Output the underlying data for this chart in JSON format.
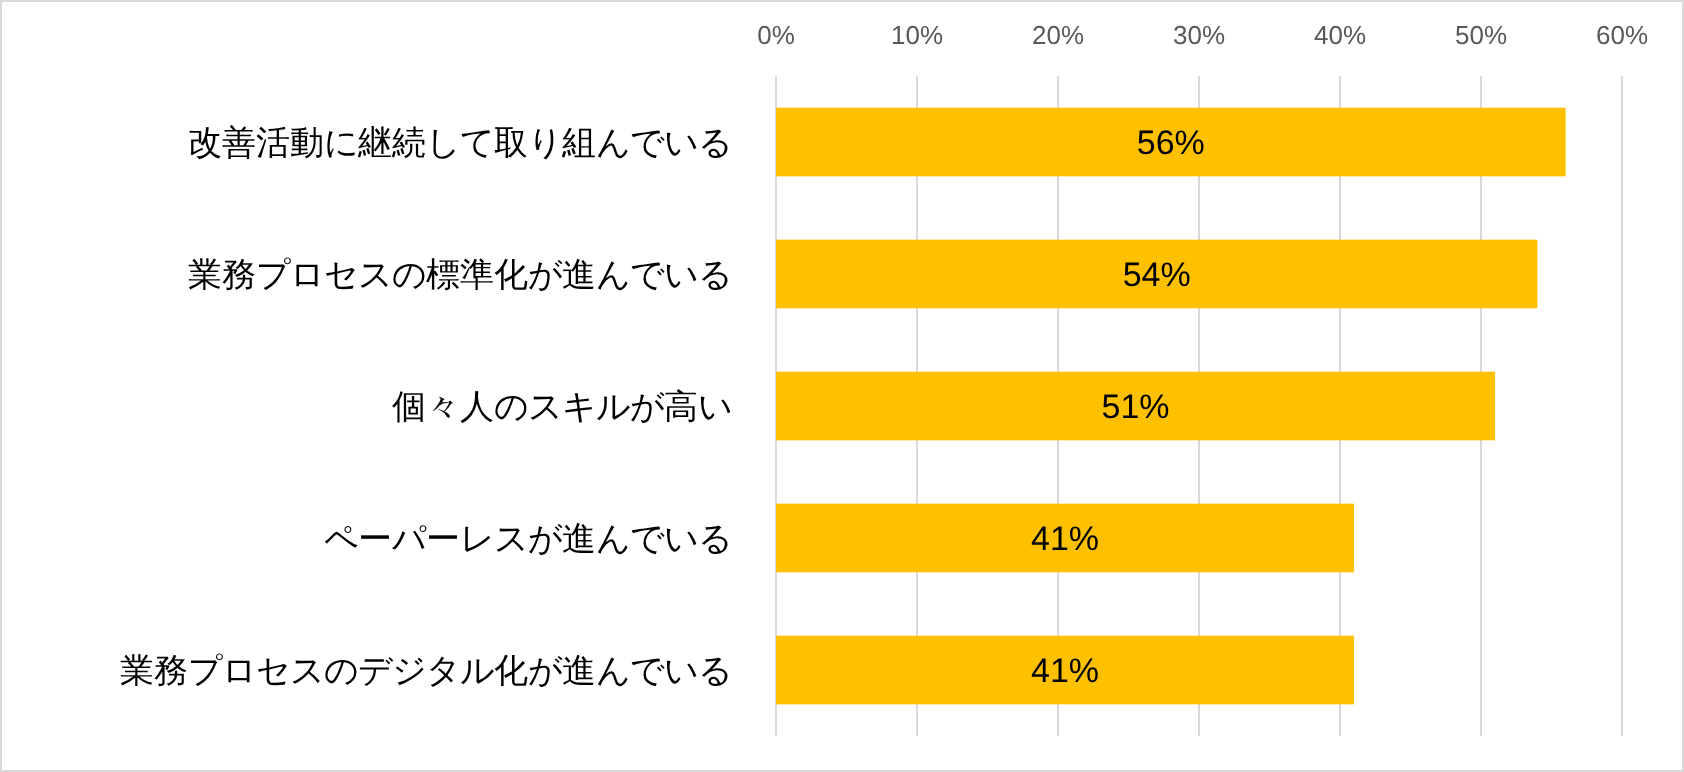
{
  "chart_data": {
    "type": "bar",
    "orientation": "horizontal",
    "categories": [
      "改善活動に継続して取り組んでいる",
      "業務プロセスの標準化が進んでいる",
      "個々人のスキルが高い",
      "ペーパーレスが進んでいる",
      "業務プロセスのデジタル化が進んでいる"
    ],
    "values": [
      56,
      54,
      51,
      41,
      41
    ],
    "value_labels": [
      "56%",
      "54%",
      "51%",
      "41%",
      "41%"
    ],
    "color": "#ffc000",
    "xlim": [
      0,
      60
    ],
    "xticks": [
      {
        "value": 0,
        "label": "0%"
      },
      {
        "value": 10,
        "label": "10%"
      },
      {
        "value": 20,
        "label": "20%"
      },
      {
        "value": 30,
        "label": "30%"
      },
      {
        "value": 40,
        "label": "40%"
      },
      {
        "value": 50,
        "label": "50%"
      },
      {
        "value": 60,
        "label": "60%"
      }
    ],
    "grid": "x"
  }
}
